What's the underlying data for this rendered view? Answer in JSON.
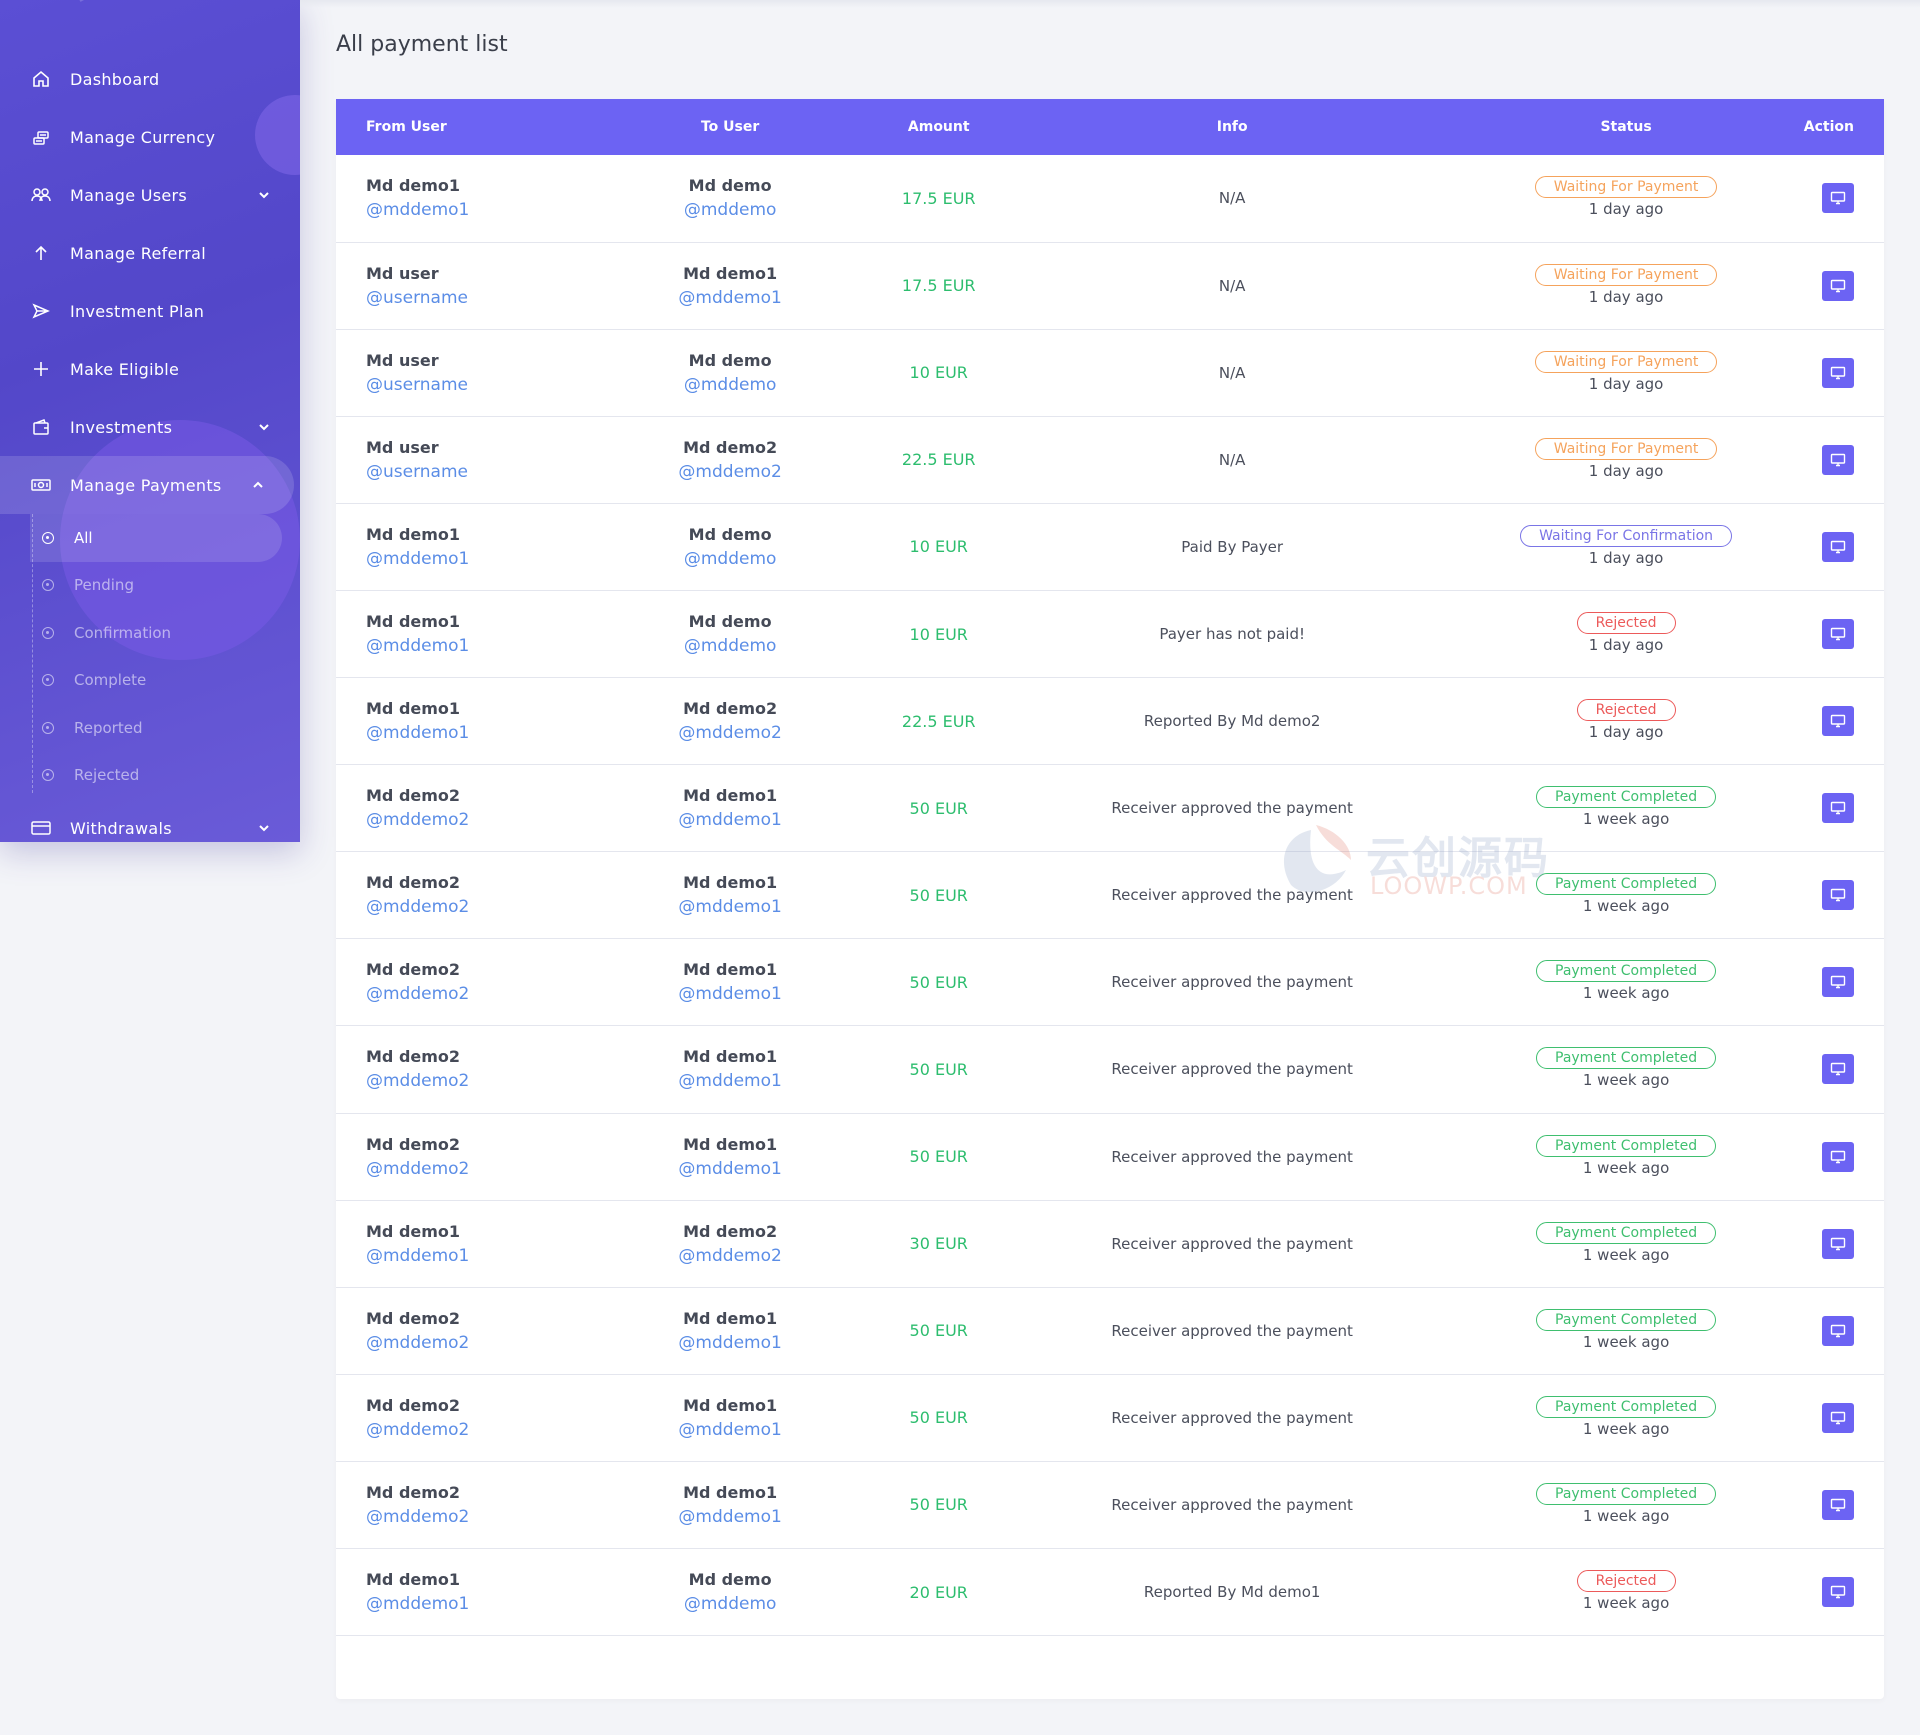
{
  "colors": {
    "accent": "#6c63f3",
    "sidebar": "#5347c9",
    "amount_green": "#2dbd6e",
    "link_blue": "#5b8de6",
    "status_orange": "#f5a35c",
    "status_purple": "#7a75e6",
    "status_red": "#ec5a5a",
    "status_green": "#3fbf6f"
  },
  "sidebar": {
    "items": [
      {
        "label": "Dashboard",
        "icon": "home-icon"
      },
      {
        "label": "Manage Currency",
        "icon": "coins-icon"
      },
      {
        "label": "Manage Users",
        "icon": "users-icon",
        "chevron": "down"
      },
      {
        "label": "Manage Referral",
        "icon": "arrow-up-icon"
      },
      {
        "label": "Investment Plan",
        "icon": "send-icon"
      },
      {
        "label": "Make Eligible",
        "icon": "plus-icon"
      },
      {
        "label": "Investments",
        "icon": "wallet-icon",
        "chevron": "down"
      },
      {
        "label": "Manage Payments",
        "icon": "money-icon",
        "chevron": "up"
      },
      {
        "label": "Withdrawals",
        "icon": "credit-card-icon",
        "chevron": "down"
      }
    ],
    "payments_submenu": [
      "All",
      "Pending",
      "Confirmation",
      "Complete",
      "Reported",
      "Rejected"
    ],
    "active_sub": "All"
  },
  "page": {
    "title": "All payment list"
  },
  "table": {
    "headers": {
      "from": "From User",
      "to": "To User",
      "amount": "Amount",
      "info": "Info",
      "status": "Status",
      "action": "Action"
    },
    "rows": [
      {
        "from_name": "Md demo1",
        "from_handle": "@mddemo1",
        "to_name": "Md demo",
        "to_handle": "@mddemo",
        "amount": "17.5 EUR",
        "info": "N/A",
        "status": "Waiting For Payment",
        "status_color": "orange",
        "ago": "1 day ago"
      },
      {
        "from_name": "Md user",
        "from_handle": "@username",
        "to_name": "Md demo1",
        "to_handle": "@mddemo1",
        "amount": "17.5 EUR",
        "info": "N/A",
        "status": "Waiting For Payment",
        "status_color": "orange",
        "ago": "1 day ago"
      },
      {
        "from_name": "Md user",
        "from_handle": "@username",
        "to_name": "Md demo",
        "to_handle": "@mddemo",
        "amount": "10 EUR",
        "info": "N/A",
        "status": "Waiting For Payment",
        "status_color": "orange",
        "ago": "1 day ago"
      },
      {
        "from_name": "Md user",
        "from_handle": "@username",
        "to_name": "Md demo2",
        "to_handle": "@mddemo2",
        "amount": "22.5 EUR",
        "info": "N/A",
        "status": "Waiting For Payment",
        "status_color": "orange",
        "ago": "1 day ago"
      },
      {
        "from_name": "Md demo1",
        "from_handle": "@mddemo1",
        "to_name": "Md demo",
        "to_handle": "@mddemo",
        "amount": "10 EUR",
        "info": "Paid By Payer",
        "status": "Waiting For Confirmation",
        "status_color": "purple",
        "ago": "1 day ago"
      },
      {
        "from_name": "Md demo1",
        "from_handle": "@mddemo1",
        "to_name": "Md demo",
        "to_handle": "@mddemo",
        "amount": "10 EUR",
        "info": "Payer has not paid!",
        "status": "Rejected",
        "status_color": "red",
        "ago": "1 day ago"
      },
      {
        "from_name": "Md demo1",
        "from_handle": "@mddemo1",
        "to_name": "Md demo2",
        "to_handle": "@mddemo2",
        "amount": "22.5 EUR",
        "info": "Reported By Md demo2",
        "status": "Rejected",
        "status_color": "red",
        "ago": "1 day ago"
      },
      {
        "from_name": "Md demo2",
        "from_handle": "@mddemo2",
        "to_name": "Md demo1",
        "to_handle": "@mddemo1",
        "amount": "50 EUR",
        "info": "Receiver approved the payment",
        "status": "Payment Completed",
        "status_color": "green",
        "ago": "1 week ago"
      },
      {
        "from_name": "Md demo2",
        "from_handle": "@mddemo2",
        "to_name": "Md demo1",
        "to_handle": "@mddemo1",
        "amount": "50 EUR",
        "info": "Receiver approved the payment",
        "status": "Payment Completed",
        "status_color": "green",
        "ago": "1 week ago"
      },
      {
        "from_name": "Md demo2",
        "from_handle": "@mddemo2",
        "to_name": "Md demo1",
        "to_handle": "@mddemo1",
        "amount": "50 EUR",
        "info": "Receiver approved the payment",
        "status": "Payment Completed",
        "status_color": "green",
        "ago": "1 week ago"
      },
      {
        "from_name": "Md demo2",
        "from_handle": "@mddemo2",
        "to_name": "Md demo1",
        "to_handle": "@mddemo1",
        "amount": "50 EUR",
        "info": "Receiver approved the payment",
        "status": "Payment Completed",
        "status_color": "green",
        "ago": "1 week ago"
      },
      {
        "from_name": "Md demo2",
        "from_handle": "@mddemo2",
        "to_name": "Md demo1",
        "to_handle": "@mddemo1",
        "amount": "50 EUR",
        "info": "Receiver approved the payment",
        "status": "Payment Completed",
        "status_color": "green",
        "ago": "1 week ago"
      },
      {
        "from_name": "Md demo1",
        "from_handle": "@mddemo1",
        "to_name": "Md demo2",
        "to_handle": "@mddemo2",
        "amount": "30 EUR",
        "info": "Receiver approved the payment",
        "status": "Payment Completed",
        "status_color": "green",
        "ago": "1 week ago"
      },
      {
        "from_name": "Md demo2",
        "from_handle": "@mddemo2",
        "to_name": "Md demo1",
        "to_handle": "@mddemo1",
        "amount": "50 EUR",
        "info": "Receiver approved the payment",
        "status": "Payment Completed",
        "status_color": "green",
        "ago": "1 week ago"
      },
      {
        "from_name": "Md demo2",
        "from_handle": "@mddemo2",
        "to_name": "Md demo1",
        "to_handle": "@mddemo1",
        "amount": "50 EUR",
        "info": "Receiver approved the payment",
        "status": "Payment Completed",
        "status_color": "green",
        "ago": "1 week ago"
      },
      {
        "from_name": "Md demo2",
        "from_handle": "@mddemo2",
        "to_name": "Md demo1",
        "to_handle": "@mddemo1",
        "amount": "50 EUR",
        "info": "Receiver approved the payment",
        "status": "Payment Completed",
        "status_color": "green",
        "ago": "1 week ago"
      },
      {
        "from_name": "Md demo1",
        "from_handle": "@mddemo1",
        "to_name": "Md demo",
        "to_handle": "@mddemo",
        "amount": "20 EUR",
        "info": "Reported By Md demo1",
        "status": "Rejected",
        "status_color": "red",
        "ago": "1 week ago"
      }
    ],
    "action_icon": "monitor-icon"
  },
  "watermark": {
    "text": "云创源码",
    "sub": "LOOWP.COM"
  }
}
